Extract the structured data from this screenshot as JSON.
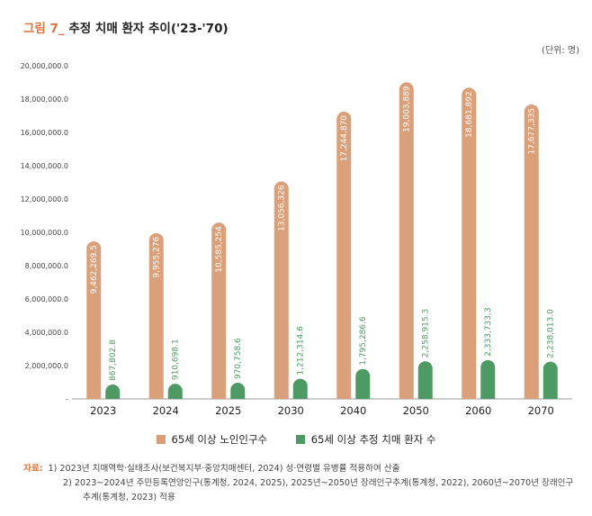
{
  "header": {
    "figure_label": "그림 7_",
    "title": "추정 치매 환자 추이('23-'70)",
    "unit": "(단위: 명)"
  },
  "colors": {
    "elderly": "#d9a07a",
    "dementia": "#4e9a64",
    "accent": "#d8753f"
  },
  "chart_data": {
    "type": "bar",
    "title": "추정 치매 환자 추이('23-'70)",
    "categories": [
      "2023",
      "2024",
      "2025",
      "2030",
      "2040",
      "2050",
      "2060",
      "2070"
    ],
    "ylim": [
      0,
      20000000
    ],
    "yticks": [
      "-",
      "2,000,000.0",
      "4,000,000.0",
      "6,000,000.0",
      "8,000,000.0",
      "10,000,000.0",
      "12,000,000.0",
      "14,000,000.0",
      "16,000,000.0",
      "18,000,000.0",
      "20,000,000.0"
    ],
    "grid": false,
    "legend": "bottom",
    "series": [
      {
        "name": "65세 이상 노인인구수",
        "values": [
          9462269.5,
          9955276,
          10585254,
          13056326,
          17244870,
          19003889,
          18681892,
          17677335
        ],
        "labels": [
          "9,462,269.5",
          "9,955,276",
          "10,585,254",
          "13,056,326",
          "17,244,870",
          "19,003,889",
          "18,681,892",
          "17,677,335"
        ]
      },
      {
        "name": "65세 이상 추정 치매 환자 수",
        "values": [
          867802.8,
          910698.1,
          970758.6,
          1212314.6,
          1795286.6,
          2258915.3,
          2333733.3,
          2238013.0
        ],
        "labels": [
          "867,802.8",
          "910,698.1",
          "970,758.6",
          "1,212,314.6",
          "1,795,286.6",
          "2,258,915.3",
          "2,333,733.3",
          "2,238,013.0"
        ]
      }
    ]
  },
  "source": {
    "label": "자료:",
    "line1": "1) 2023년 치매역학·실태조사(보건복지부·중앙치매센터, 2024) 성·연령별 유병률 적용하여 산출",
    "line2": "2) 2023~2024년 주민등록연앙인구(통계청, 2024, 2025), 2025년~2050년 장래인구추계(통계청, 2022), 2060년~2070년 장래인구",
    "line3": "추계(통계청, 2023) 적용"
  }
}
